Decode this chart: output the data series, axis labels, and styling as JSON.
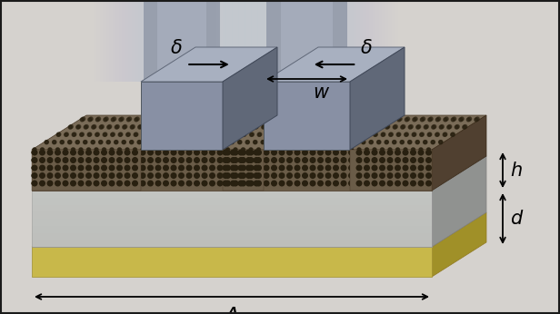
{
  "background_color": "#d5d2ce",
  "border_color": "#1a1a1a",
  "labels": {
    "delta1": "δ",
    "delta2": "δ",
    "w": "w",
    "h": "h",
    "d": "d",
    "Lambda": "Λ"
  },
  "label_fontsize": 15,
  "label_color": "#000000",
  "fig_width": 6.16,
  "fig_height": 3.46,
  "dpi": 100,
  "gold_front": "#c8b84a",
  "gold_top": "#ddd070",
  "gold_right": "#a09028",
  "sub_front": "#b8bab8",
  "sub_top": "#d0d2d0",
  "sub_right": "#909290",
  "grat_front": "#6a5c48",
  "grat_top": "#7a6c58",
  "grat_right": "#504030",
  "dot_color": "#282010",
  "pillar_front": "#8890a4",
  "pillar_top": "#a8b0c0",
  "pillar_right": "#606878",
  "pillar_left_inner": "#788090",
  "arrow_color": "#000000"
}
